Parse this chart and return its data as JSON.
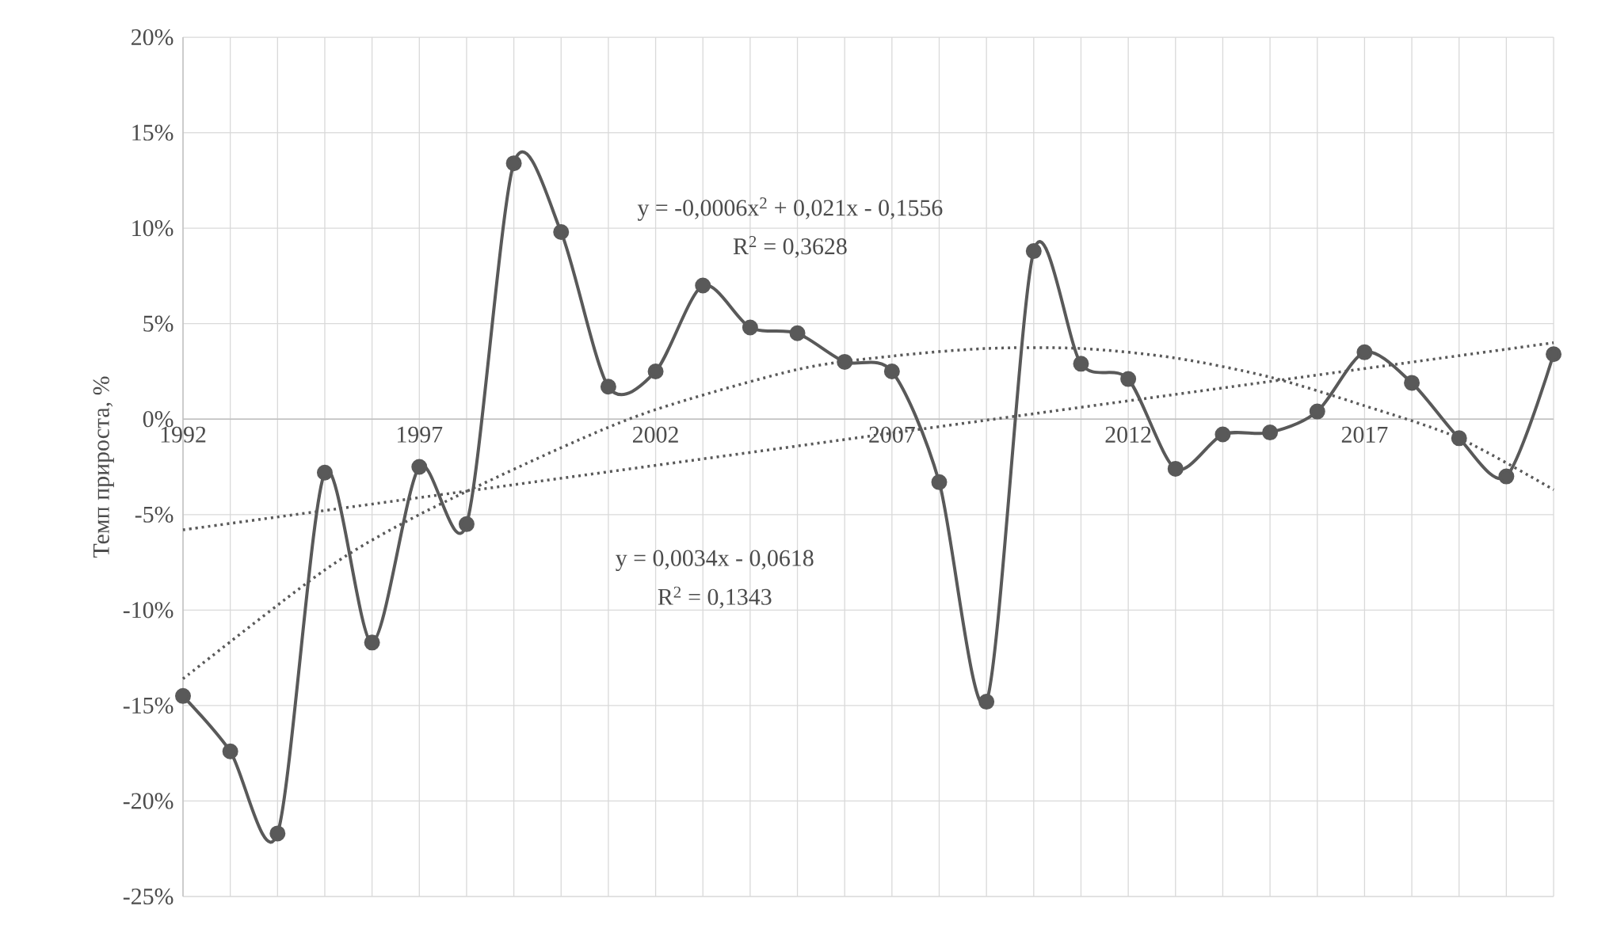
{
  "chart_data": {
    "type": "line",
    "ylabel": "Темп прироста, %",
    "x": [
      1992,
      1993,
      1994,
      1995,
      1996,
      1997,
      1998,
      1999,
      2000,
      2001,
      2002,
      2003,
      2004,
      2005,
      2006,
      2007,
      2008,
      2009,
      2010,
      2011,
      2012,
      2013,
      2014,
      2015,
      2016,
      2017,
      2018,
      2019,
      2020,
      2021
    ],
    "series": [
      {
        "color": "#595959",
        "marker": "circle",
        "line_style": "solid",
        "values": [
          -14.5,
          -17.4,
          -21.7,
          -2.8,
          -11.7,
          -2.5,
          -5.5,
          13.4,
          9.8,
          1.7,
          2.5,
          7.0,
          4.8,
          4.5,
          3.0,
          2.5,
          -3.3,
          -14.8,
          8.8,
          2.9,
          2.1,
          -2.6,
          -0.8,
          -0.7,
          0.4,
          3.5,
          1.9,
          -1.0,
          -3.0,
          3.4
        ]
      },
      {
        "color": "#595959",
        "marker": "none",
        "line_style": "dotted",
        "x": [
          1992,
          2021
        ],
        "values": [
          -5.8,
          4.0
        ]
      },
      {
        "color": "#595959",
        "marker": "none",
        "line_style": "dotted",
        "x": [
          1992,
          1995,
          1997,
          2000,
          2002,
          2005,
          2007,
          2009,
          2011,
          2013,
          2015,
          2017,
          2019,
          2021
        ],
        "values": [
          -13.6,
          -7.9,
          -5.0,
          -1.5,
          0.5,
          2.6,
          3.3,
          3.7,
          3.7,
          3.2,
          2.2,
          0.7,
          -1.0,
          -3.7
        ]
      }
    ],
    "annotations": [
      "y = -0,0006x$^{2}$ + 0,021x - 0,1556",
      "R$^{2}$ = 0,3628",
      "y = 0,0034x - 0,0618",
      "R$^{2}$ = 0,1343"
    ],
    "xlim": [
      1992,
      2021
    ],
    "xticks": [
      1992,
      {
        "value": 1993,
        "label": null
      },
      {
        "value": 1994,
        "label": null
      },
      {
        "value": 1995,
        "label": null
      },
      {
        "value": 1996,
        "label": null
      },
      1997,
      {
        "value": 1998,
        "label": null
      },
      {
        "value": 1999,
        "label": null
      },
      {
        "value": 2000,
        "label": null
      },
      {
        "value": 2001,
        "label": null
      },
      2002,
      {
        "value": 2003,
        "label": null
      },
      {
        "value": 2004,
        "label": null
      },
      {
        "value": 2005,
        "label": null
      },
      {
        "value": 2006,
        "label": null
      },
      2007,
      {
        "value": 2008,
        "label": null
      },
      {
        "value": 2009,
        "label": null
      },
      {
        "value": 2010,
        "label": null
      },
      {
        "value": 2011,
        "label": null
      },
      2012,
      {
        "value": 2013,
        "label": null
      },
      {
        "value": 2014,
        "label": null
      },
      {
        "value": 2015,
        "label": null
      },
      {
        "value": 2016,
        "label": null
      },
      2017,
      {
        "value": 2018,
        "label": null
      },
      {
        "value": 2019,
        "label": null
      },
      {
        "value": 2020,
        "label": null
      },
      {
        "value": 2021,
        "label": null
      }
    ],
    "ylim": [
      -25,
      20
    ],
    "yticks": [
      {
        "value": -25,
        "label": "-25%"
      },
      {
        "value": -20,
        "label": "-20%"
      },
      {
        "value": -15,
        "label": "-15%"
      },
      {
        "value": -10,
        "label": "-10%"
      },
      {
        "value": -5,
        "label": "-5%"
      },
      {
        "value": 0,
        "label": "0%"
      },
      {
        "value": 5,
        "label": "5%"
      },
      {
        "value": 10,
        "label": "10%"
      },
      {
        "value": 15,
        "label": "15%"
      },
      {
        "value": 20,
        "label": "20%"
      }
    ],
    "grid": true
  }
}
